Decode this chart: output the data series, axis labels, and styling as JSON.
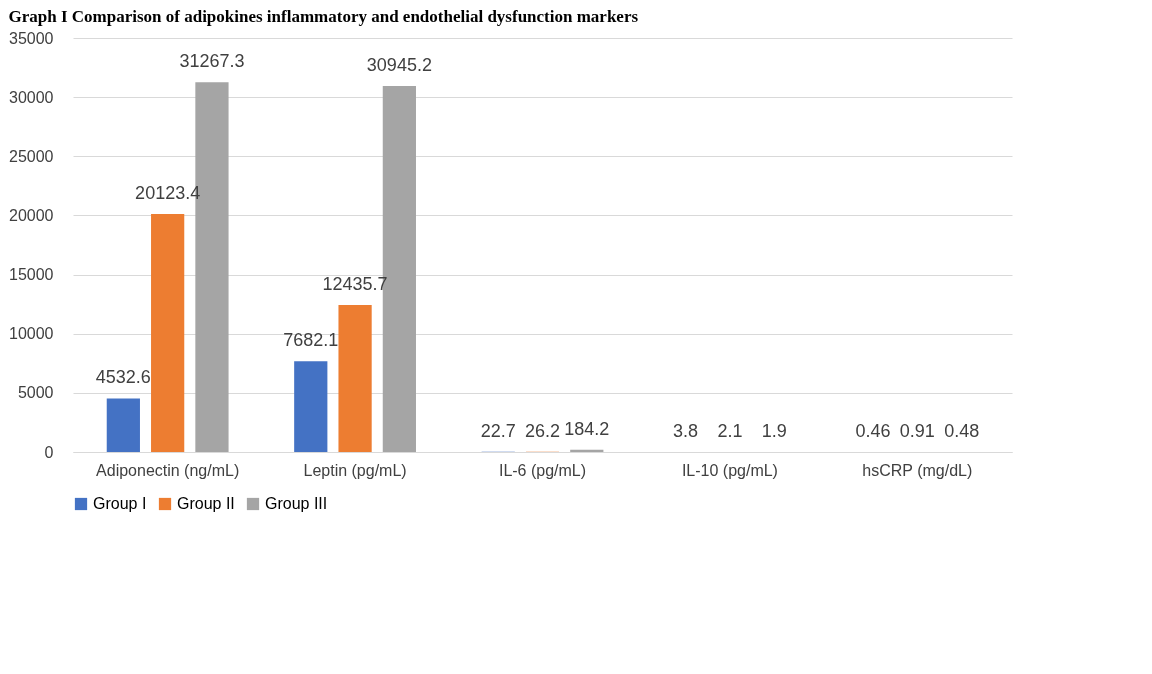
{
  "chart_data": {
    "type": "bar",
    "title": "Graph I Comparison of adipokines inflammatory and endothelial dysfunction markers",
    "categories": [
      "Adiponectin (ng/mL)",
      "Leptin (pg/mL)",
      "IL-6 (pg/mL)",
      "IL-10 (pg/mL)",
      "hsCRP (mg/dL)"
    ],
    "series": [
      {
        "name": "Group I",
        "color": "#4472c4",
        "values": [
          4532.6,
          7682.1,
          22.7,
          3.8,
          0.46
        ]
      },
      {
        "name": "Group II",
        "color": "#ed7d31",
        "values": [
          20123.4,
          12435.7,
          26.2,
          2.1,
          0.91
        ]
      },
      {
        "name": "Group III",
        "color": "#a5a5a5",
        "values": [
          31267.3,
          30945.2,
          184.2,
          1.9,
          0.48
        ]
      }
    ],
    "ylim": [
      0,
      35000
    ],
    "yticks": [
      0,
      5000,
      10000,
      15000,
      20000,
      25000,
      30000,
      35000
    ],
    "grid": "y",
    "legend": "bottom",
    "data_labels": true
  }
}
